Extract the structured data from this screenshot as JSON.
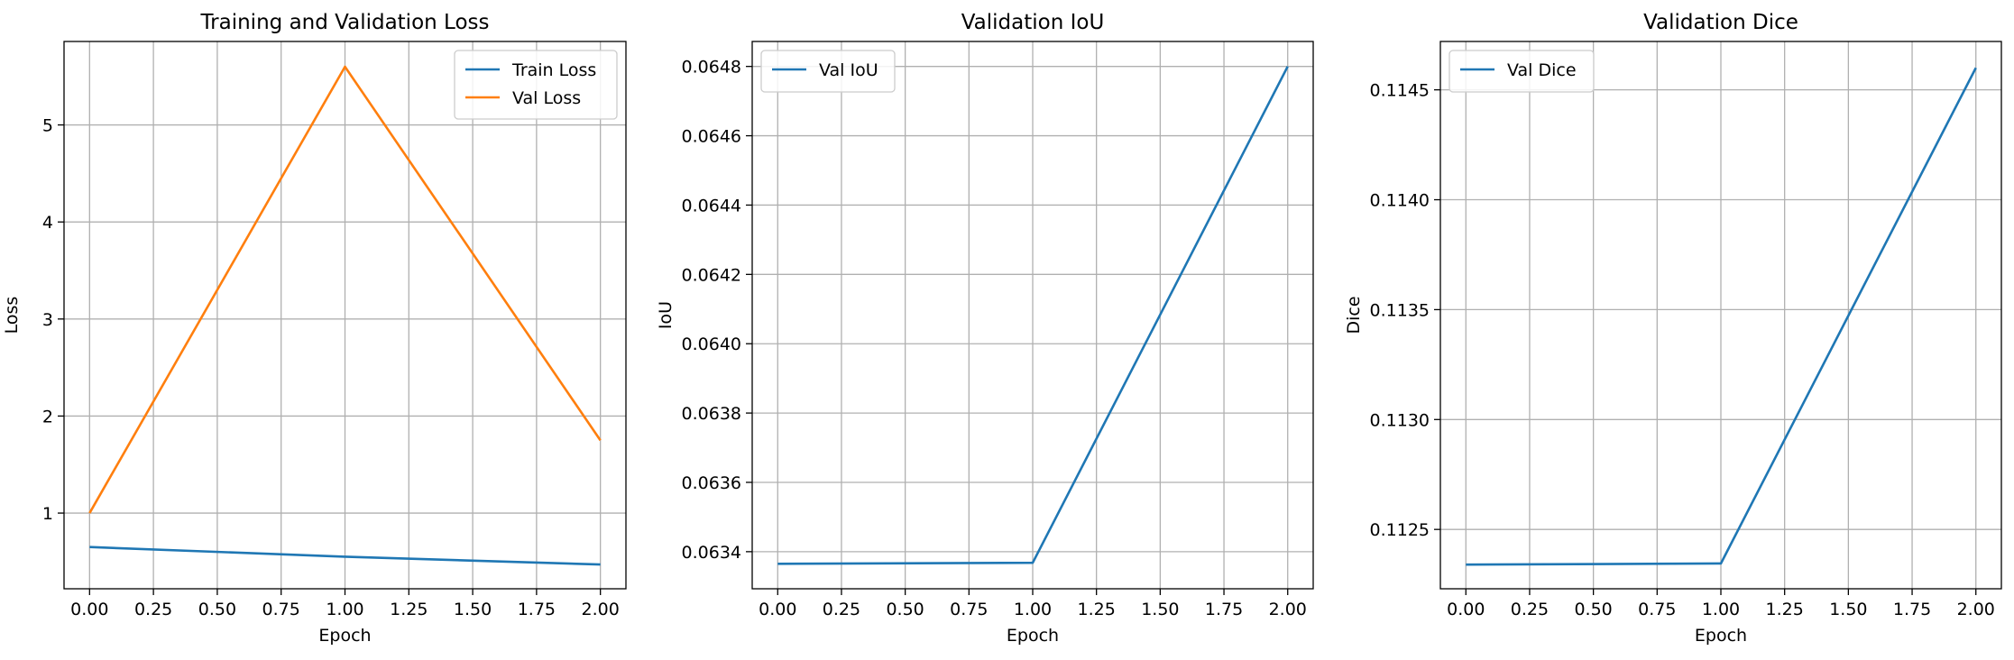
{
  "chart_data": [
    {
      "type": "line",
      "title": "Training and Validation Loss",
      "xlabel": "Epoch",
      "ylabel": "Loss",
      "x": [
        0,
        1,
        2
      ],
      "xlim": [
        -0.1,
        2.1
      ],
      "ylim": [
        0.22,
        5.86
      ],
      "xticks": [
        0,
        0.25,
        0.5,
        0.75,
        1.0,
        1.25,
        1.5,
        1.75,
        2.0
      ],
      "xtick_labels": [
        "0.00",
        "0.25",
        "0.50",
        "0.75",
        "1.00",
        "1.25",
        "1.50",
        "1.75",
        "2.00"
      ],
      "yticks": [
        1,
        2,
        3,
        4,
        5
      ],
      "ytick_labels": [
        "1",
        "2",
        "3",
        "4",
        "5"
      ],
      "grid": true,
      "legend": "top-right",
      "series": [
        {
          "name": "Train Loss",
          "color": "#1f77b4",
          "values": [
            0.65,
            0.55,
            0.47
          ]
        },
        {
          "name": "Val Loss",
          "color": "#ff7f0e",
          "values": [
            1.0,
            5.6,
            1.75
          ]
        }
      ]
    },
    {
      "type": "line",
      "title": "Validation IoU",
      "xlabel": "Epoch",
      "ylabel": "IoU",
      "x": [
        0,
        1,
        2
      ],
      "xlim": [
        -0.1,
        2.1
      ],
      "ylim": [
        0.063293,
        0.064872
      ],
      "xticks": [
        0,
        0.25,
        0.5,
        0.75,
        1.0,
        1.25,
        1.5,
        1.75,
        2.0
      ],
      "xtick_labels": [
        "0.00",
        "0.25",
        "0.50",
        "0.75",
        "1.00",
        "1.25",
        "1.50",
        "1.75",
        "2.00"
      ],
      "yticks": [
        0.0634,
        0.0636,
        0.0638,
        0.064,
        0.0642,
        0.0644,
        0.0646,
        0.0648
      ],
      "ytick_labels": [
        "0.0634",
        "0.0636",
        "0.0638",
        "0.0640",
        "0.0642",
        "0.0644",
        "0.0646",
        "0.0648"
      ],
      "grid": true,
      "legend": "top-left",
      "series": [
        {
          "name": "Val IoU",
          "color": "#1f77b4",
          "values": [
            0.063365,
            0.063368,
            0.0648
          ]
        }
      ]
    },
    {
      "type": "line",
      "title": "Validation Dice",
      "xlabel": "Epoch",
      "ylabel": "Dice",
      "x": [
        0,
        1,
        2
      ],
      "xlim": [
        -0.1,
        2.1
      ],
      "ylim": [
        0.11223,
        0.11472
      ],
      "xticks": [
        0,
        0.25,
        0.5,
        0.75,
        1.0,
        1.25,
        1.5,
        1.75,
        2.0
      ],
      "xtick_labels": [
        "0.00",
        "0.25",
        "0.50",
        "0.75",
        "1.00",
        "1.25",
        "1.50",
        "1.75",
        "2.00"
      ],
      "yticks": [
        0.1125,
        0.113,
        0.1135,
        0.114,
        0.1145
      ],
      "ytick_labels": [
        "0.1125",
        "0.1130",
        "0.1135",
        "0.1140",
        "0.1145"
      ],
      "grid": true,
      "legend": "top-left",
      "series": [
        {
          "name": "Val Dice",
          "color": "#1f77b4",
          "values": [
            0.11234,
            0.112345,
            0.1146
          ]
        }
      ]
    }
  ]
}
